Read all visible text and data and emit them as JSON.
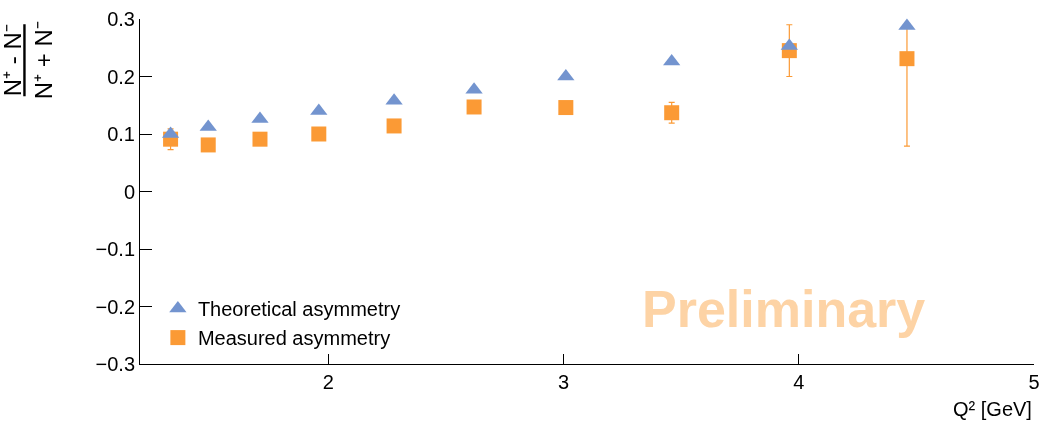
{
  "chart_data": {
    "type": "scatter",
    "xlabel": "Q² [GeV]",
    "ylabel": "N⁺ - N⁻\nN⁺ + N⁻",
    "x": [
      1.33,
      1.49,
      1.71,
      1.96,
      2.28,
      2.62,
      3.01,
      3.46,
      3.96,
      4.46
    ],
    "series": [
      {
        "name": "Theoretical asymmetry",
        "color": "#7394cf",
        "marker": "triangle",
        "values": [
          0.1,
          0.112,
          0.126,
          0.14,
          0.158,
          0.177,
          0.2,
          0.226,
          0.253,
          0.288
        ]
      },
      {
        "name": "Measured asymmetry",
        "color": "#fb9a35",
        "marker": "square",
        "values": [
          0.091,
          0.081,
          0.091,
          0.1,
          0.114,
          0.147,
          0.146,
          0.137,
          0.245,
          0.231
        ],
        "errors": [
          0.018,
          null,
          null,
          null,
          null,
          null,
          null,
          0.018,
          0.045,
          [
            0.079,
            0.291
          ]
        ]
      }
    ],
    "xlim": [
      1.2,
      5
    ],
    "xticks": [
      2,
      3,
      4,
      5
    ],
    "ylim": [
      -0.3,
      0.3
    ],
    "yticks": [
      {
        "value": -0.3,
        "label": "−0.3"
      },
      {
        "value": -0.2,
        "label": "−0.2"
      },
      {
        "value": -0.1,
        "label": "−0.1"
      },
      0,
      0.1,
      0.2,
      0.3
    ],
    "legend": "bottom left",
    "annotations": [
      "Preliminary"
    ]
  }
}
